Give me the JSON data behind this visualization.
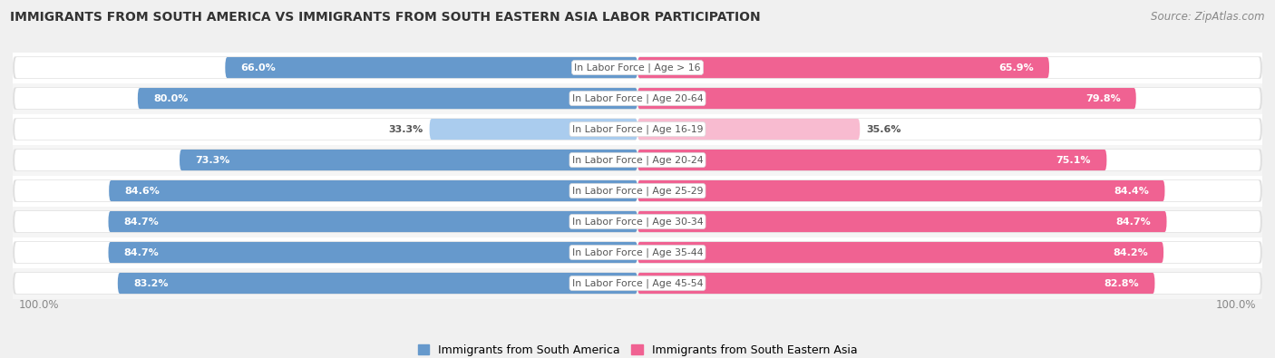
{
  "title": "IMMIGRANTS FROM SOUTH AMERICA VS IMMIGRANTS FROM SOUTH EASTERN ASIA LABOR PARTICIPATION",
  "source": "Source: ZipAtlas.com",
  "categories": [
    "In Labor Force | Age > 16",
    "In Labor Force | Age 20-64",
    "In Labor Force | Age 16-19",
    "In Labor Force | Age 20-24",
    "In Labor Force | Age 25-29",
    "In Labor Force | Age 30-34",
    "In Labor Force | Age 35-44",
    "In Labor Force | Age 45-54"
  ],
  "south_america": [
    66.0,
    80.0,
    33.3,
    73.3,
    84.6,
    84.7,
    84.7,
    83.2
  ],
  "south_eastern_asia": [
    65.9,
    79.8,
    35.6,
    75.1,
    84.4,
    84.7,
    84.2,
    82.8
  ],
  "color_sa": "#6699CC",
  "color_sea": "#F06292",
  "color_sa_light": "#AACCEE",
  "color_sea_light": "#F8BBD0",
  "legend_sa": "Immigrants from South America",
  "legend_sea": "Immigrants from South Eastern Asia",
  "bg_color": "#F0F0F0",
  "row_bg_even": "#FFFFFF",
  "row_bg_odd": "#F5F5F5",
  "track_color": "#E0E0E0"
}
